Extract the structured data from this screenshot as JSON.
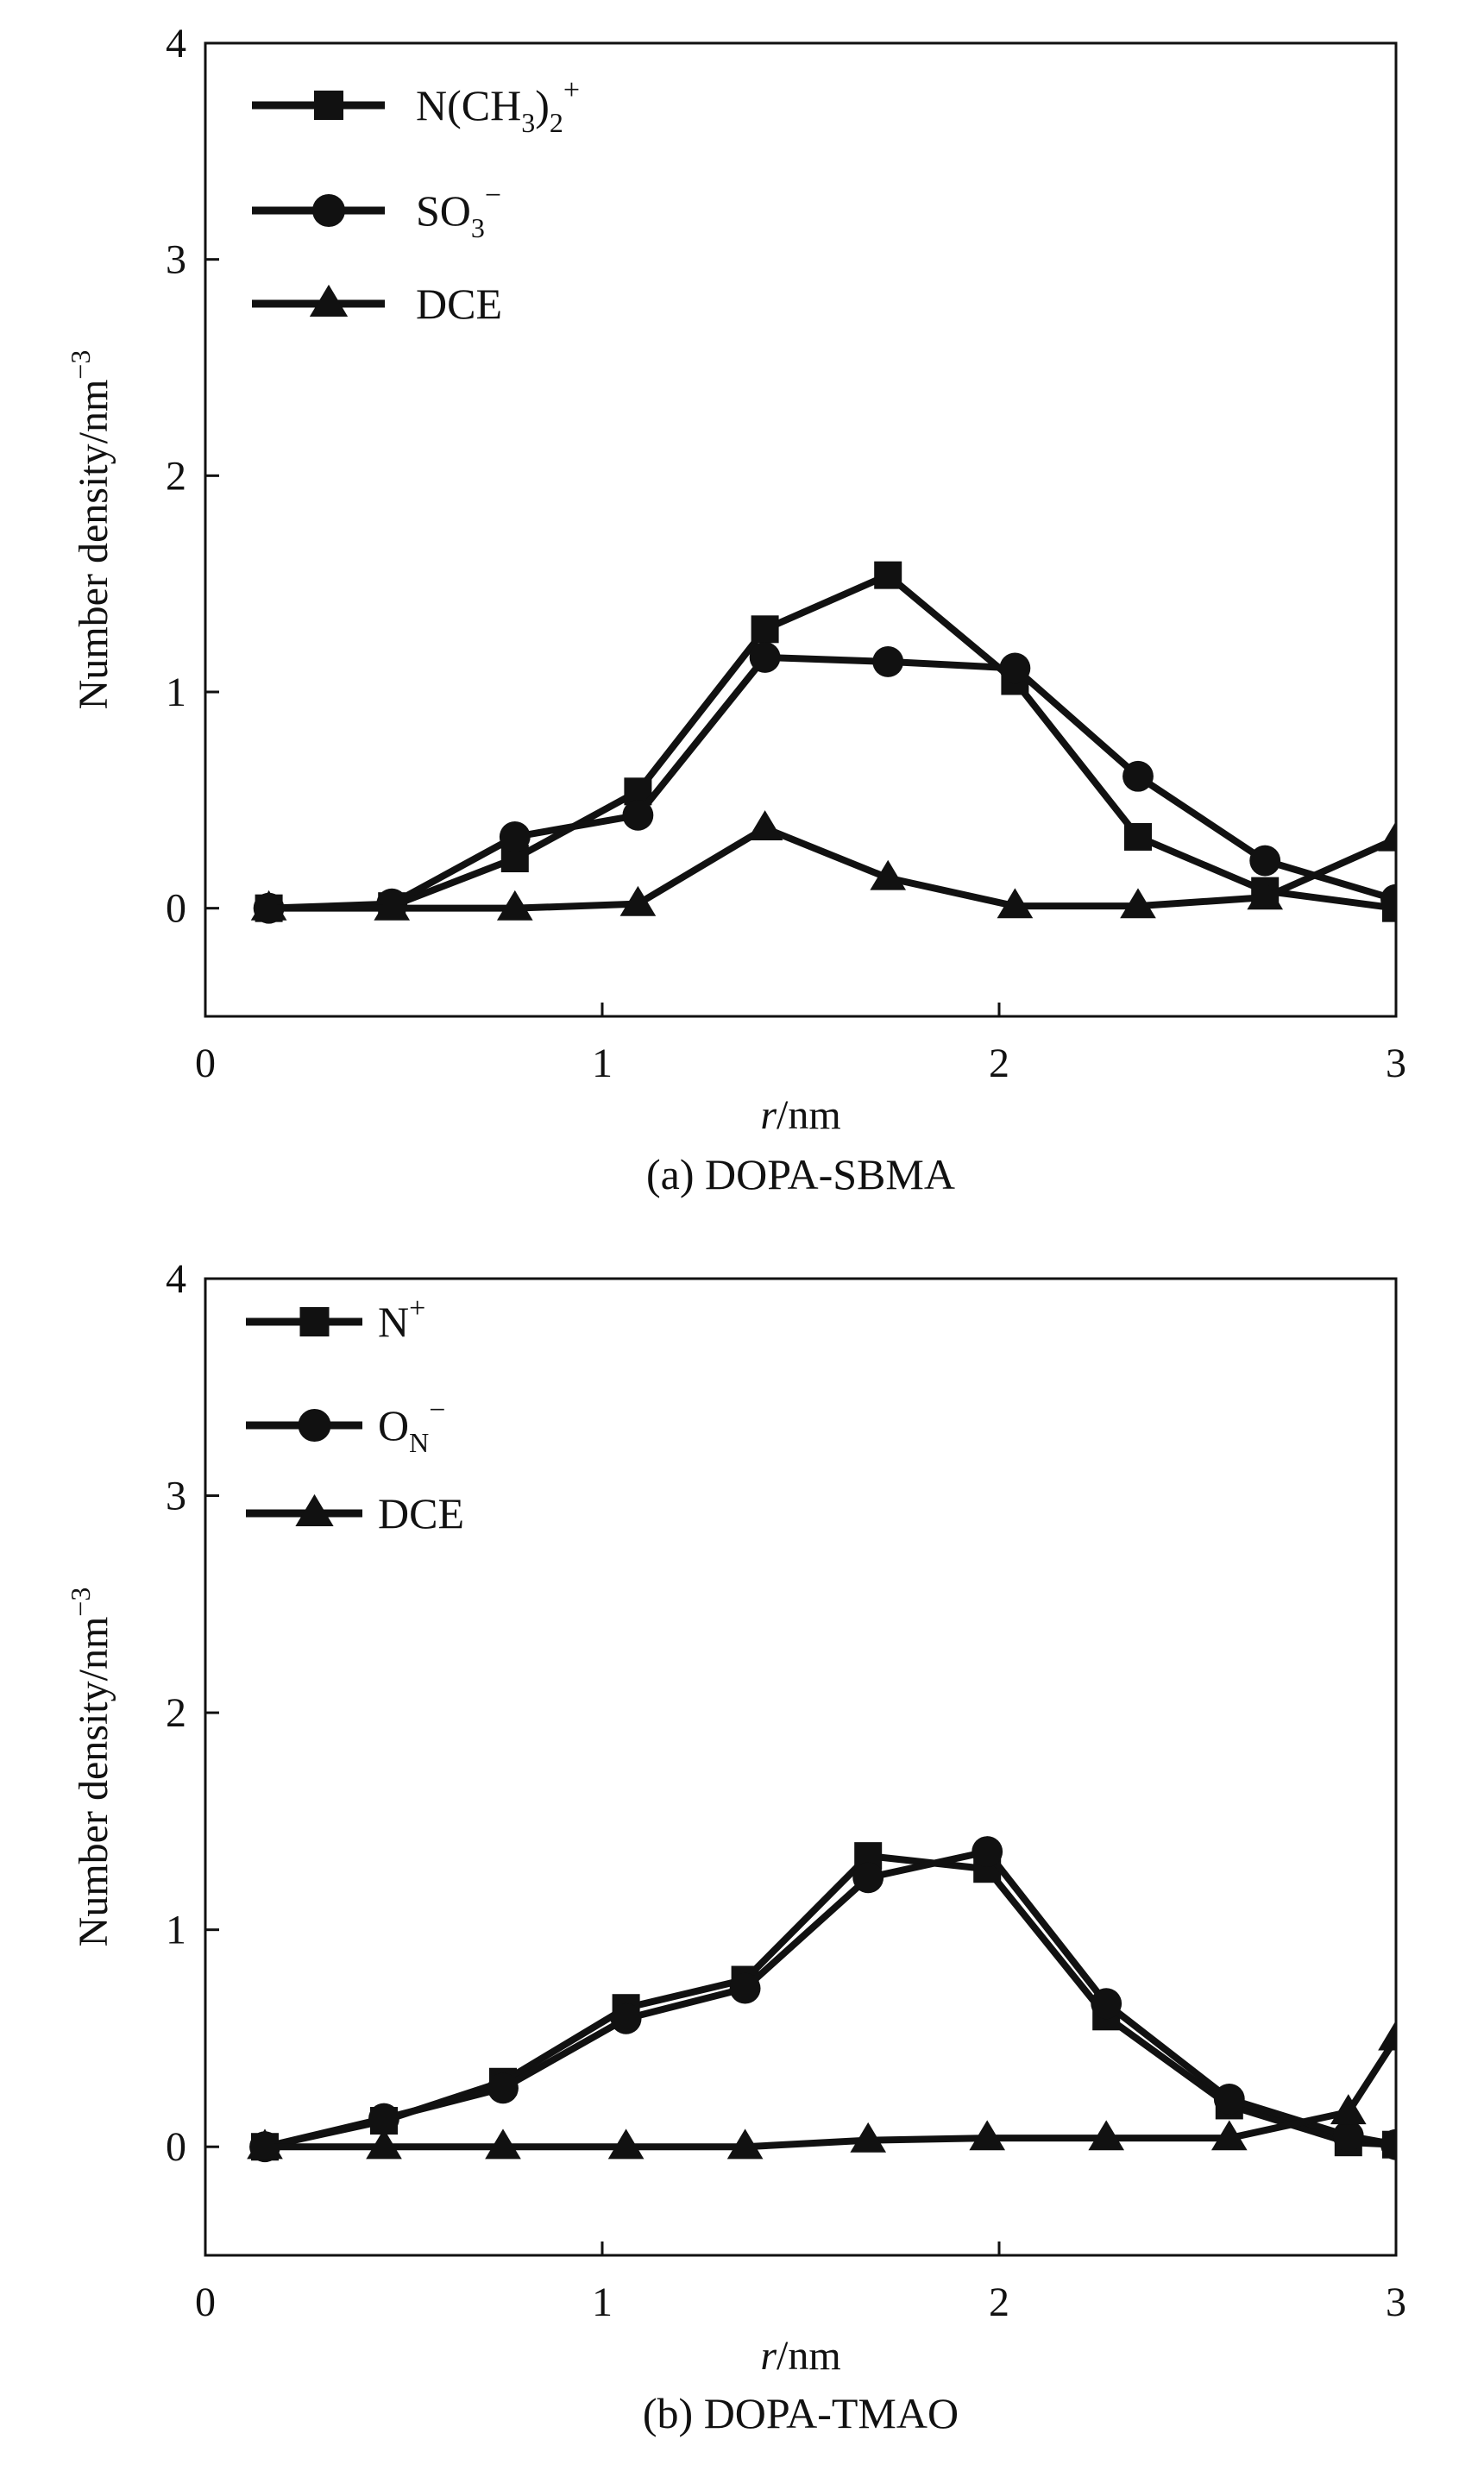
{
  "chart_data": [
    {
      "type": "line",
      "caption": "(a) DOPA-SBMA",
      "xlabel_italic": "r",
      "xlabel_unit": "/nm",
      "ylabel": "Number density/nm",
      "ylabel_sup": "−3",
      "xlim": [
        0,
        3
      ],
      "ylim": [
        -0.5,
        4
      ],
      "xticks": [
        0,
        1,
        2,
        3
      ],
      "yticks": [
        0,
        1,
        2,
        3,
        4
      ],
      "legend_position": "top-left",
      "series": [
        {
          "name": "N(CH3)2+",
          "legend": {
            "base": "N(CH",
            "sub1": "3",
            "mid": ")",
            "sub2": "2",
            "sup": "+"
          },
          "marker": "square",
          "x": [
            0.16,
            0.47,
            0.78,
            1.09,
            1.41,
            1.72,
            2.04,
            2.35,
            2.67,
            3.0
          ],
          "y": [
            0.0,
            0.01,
            0.23,
            0.54,
            1.29,
            1.54,
            1.05,
            0.33,
            0.08,
            0.0
          ]
        },
        {
          "name": "SO3−",
          "legend": {
            "base": "SO",
            "sub1": "3",
            "sup": "−"
          },
          "marker": "circle",
          "x": [
            0.16,
            0.47,
            0.78,
            1.09,
            1.41,
            1.72,
            2.04,
            2.35,
            2.67,
            3.0
          ],
          "y": [
            0.0,
            0.02,
            0.33,
            0.43,
            1.16,
            1.14,
            1.11,
            0.61,
            0.22,
            0.04
          ]
        },
        {
          "name": "DCE",
          "legend": {
            "base": "DCE"
          },
          "marker": "triangle",
          "x": [
            0.16,
            0.47,
            0.78,
            1.09,
            1.41,
            1.72,
            2.04,
            2.35,
            2.67,
            3.0
          ],
          "y": [
            0.0,
            0.0,
            0.0,
            0.02,
            0.37,
            0.14,
            0.01,
            0.01,
            0.05,
            0.32
          ]
        }
      ]
    },
    {
      "type": "line",
      "caption": "(b) DOPA-TMAO",
      "xlabel_italic": "r",
      "xlabel_unit": "/nm",
      "ylabel": "Number density/nm",
      "ylabel_sup": "−3",
      "xlim": [
        0,
        3
      ],
      "ylim": [
        -0.5,
        4
      ],
      "xticks": [
        0,
        1,
        2,
        3
      ],
      "yticks": [
        0,
        1,
        2,
        3,
        4
      ],
      "legend_position": "top-left",
      "series": [
        {
          "name": "N+",
          "legend": {
            "base": "N",
            "sup": "+"
          },
          "marker": "square",
          "x": [
            0.15,
            0.45,
            0.75,
            1.06,
            1.36,
            1.67,
            1.97,
            2.27,
            2.58,
            2.88,
            3.0
          ],
          "y": [
            0.0,
            0.12,
            0.3,
            0.64,
            0.77,
            1.34,
            1.28,
            0.6,
            0.19,
            0.02,
            0.01
          ]
        },
        {
          "name": "ON−",
          "legend": {
            "base": "O",
            "sub1": "N",
            "sup": "−"
          },
          "marker": "circle",
          "x": [
            0.15,
            0.45,
            0.75,
            1.06,
            1.36,
            1.67,
            1.97,
            2.27,
            2.58,
            2.88,
            3.0
          ],
          "y": [
            0.0,
            0.13,
            0.27,
            0.59,
            0.73,
            1.24,
            1.36,
            0.66,
            0.22,
            0.05,
            0.01
          ]
        },
        {
          "name": "DCE",
          "legend": {
            "base": "DCE"
          },
          "marker": "triangle",
          "x": [
            0.15,
            0.45,
            0.75,
            1.06,
            1.36,
            1.67,
            1.97,
            2.27,
            2.58,
            2.88,
            3.0
          ],
          "y": [
            0.0,
            0.0,
            0.0,
            0.0,
            0.0,
            0.03,
            0.04,
            0.04,
            0.04,
            0.16,
            0.5
          ]
        }
      ]
    }
  ]
}
